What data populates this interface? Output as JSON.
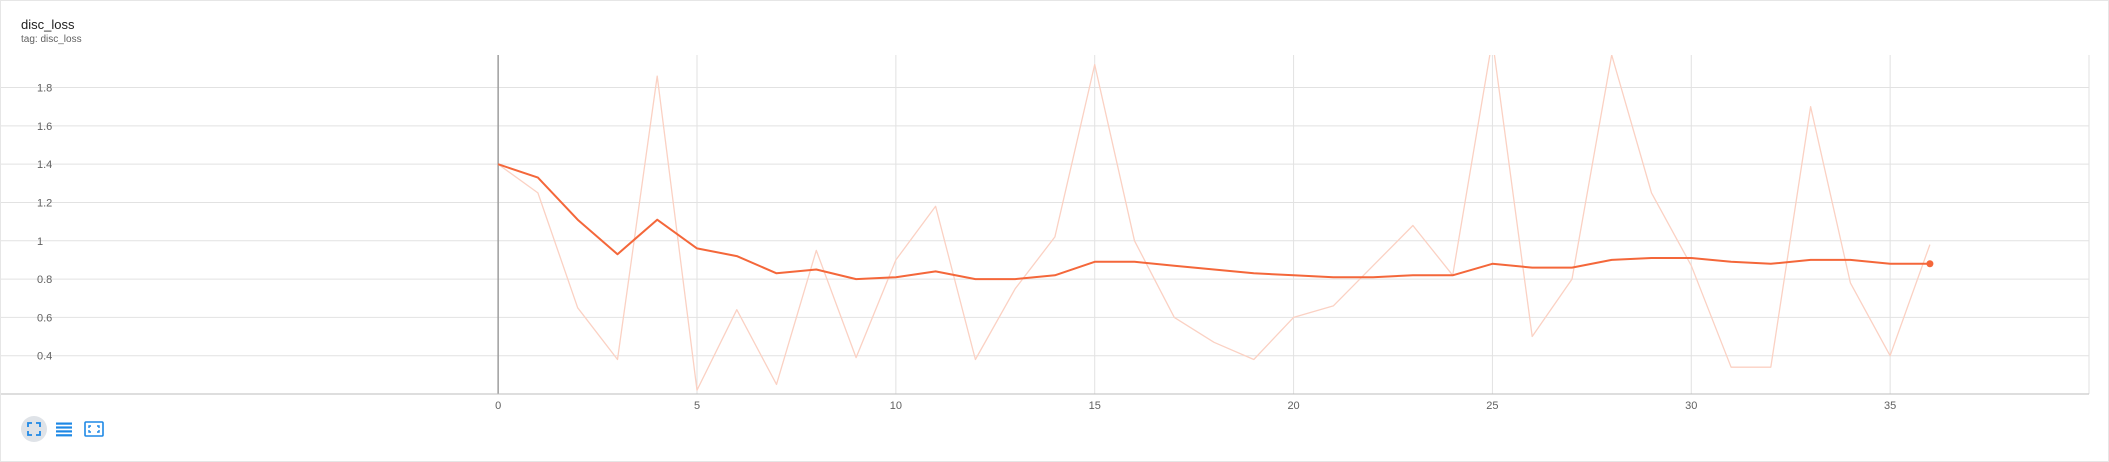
{
  "card": {
    "title": "disc_loss",
    "subtitle": "tag: disc_loss"
  },
  "toolbar": {
    "buttons": [
      {
        "name": "fit-domain",
        "icon": "fullscreen-icon"
      },
      {
        "name": "toggle-log",
        "icon": "list-icon"
      },
      {
        "name": "fit-to-data",
        "icon": "fit-screen-icon"
      }
    ]
  },
  "colors": {
    "smoothed": "#f4673a",
    "raw": "#fbd1c3",
    "grid": "#e2e2e2",
    "axis": "#9e9e9e",
    "toolbar_icon": "#1e88e5"
  },
  "chart_data": {
    "type": "line",
    "title": "disc_loss",
    "xlabel": "",
    "ylabel": "",
    "xlim": [
      -12.5,
      40
    ],
    "ylim": [
      0.2,
      1.97
    ],
    "x_ticks": [
      0,
      5,
      10,
      15,
      20,
      25,
      30,
      35
    ],
    "y_ticks": [
      0.4,
      0.6,
      0.8,
      1.0,
      1.2,
      1.4,
      1.6,
      1.8
    ],
    "y_tick_labels": [
      "0.4",
      "0.6",
      "0.8",
      "1",
      "1.2",
      "1.4",
      "1.6",
      "1.8"
    ],
    "grid": true,
    "series": [
      {
        "style": "raw",
        "x": [
          0,
          1,
          2,
          3,
          4,
          5,
          6,
          7,
          8,
          9,
          10,
          11,
          12,
          13,
          14,
          15,
          16,
          17,
          18,
          19,
          20,
          21,
          22,
          23,
          24,
          25,
          26,
          27,
          28,
          29,
          30,
          31,
          32,
          33,
          34,
          35,
          36
        ],
        "values": [
          1.4,
          1.25,
          0.65,
          0.38,
          1.86,
          0.22,
          0.64,
          0.25,
          0.95,
          0.39,
          0.9,
          1.18,
          0.38,
          0.75,
          1.02,
          1.92,
          1.0,
          0.6,
          0.47,
          0.38,
          0.6,
          0.66,
          0.87,
          1.08,
          0.82,
          2.05,
          0.5,
          0.8,
          1.97,
          1.25,
          0.87,
          0.34,
          0.34,
          1.7,
          0.78,
          0.4,
          0.98
        ]
      },
      {
        "style": "smoothed",
        "x": [
          0,
          1,
          2,
          3,
          4,
          5,
          6,
          7,
          8,
          9,
          10,
          11,
          12,
          13,
          14,
          15,
          16,
          17,
          18,
          19,
          20,
          21,
          22,
          23,
          24,
          25,
          26,
          27,
          28,
          29,
          30,
          31,
          32,
          33,
          34,
          35,
          36
        ],
        "values": [
          1.4,
          1.33,
          1.11,
          0.93,
          1.11,
          0.96,
          0.92,
          0.83,
          0.85,
          0.8,
          0.81,
          0.84,
          0.8,
          0.8,
          0.82,
          0.89,
          0.89,
          0.87,
          0.85,
          0.83,
          0.82,
          0.81,
          0.81,
          0.82,
          0.82,
          0.88,
          0.86,
          0.86,
          0.9,
          0.91,
          0.91,
          0.89,
          0.88,
          0.9,
          0.9,
          0.88,
          0.88
        ]
      }
    ]
  }
}
